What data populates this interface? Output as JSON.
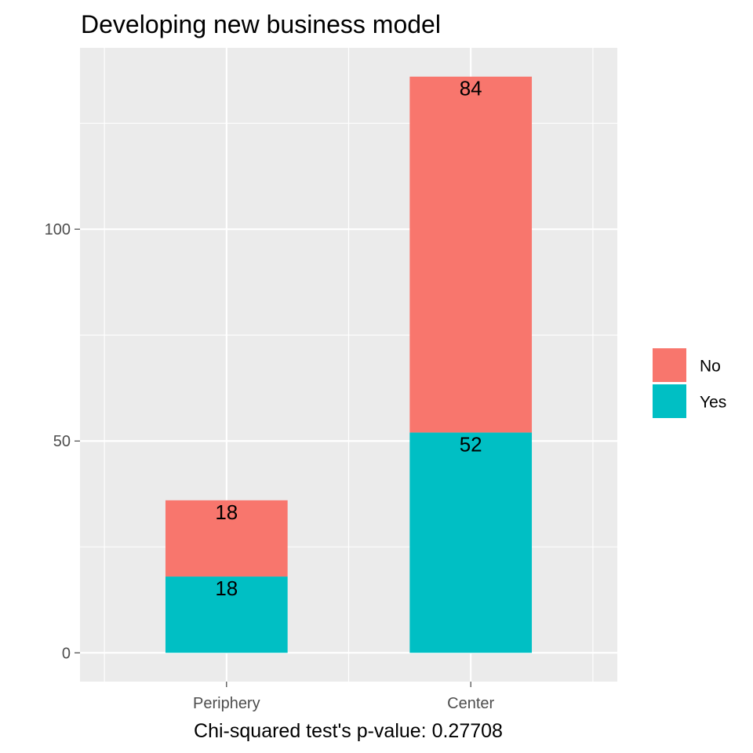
{
  "chart_data": {
    "type": "bar",
    "stacked": true,
    "title": "Developing new business model",
    "xlabel": "Chi-squared test's p-value: 0.27708",
    "ylabel": "",
    "categories": [
      "Periphery",
      "Center"
    ],
    "series": [
      {
        "name": "Yes",
        "values": [
          18,
          52
        ],
        "color": "#00BFC4"
      },
      {
        "name": "No",
        "values": [
          18,
          84
        ],
        "color": "#F8766D"
      }
    ],
    "legend_order": [
      "No",
      "Yes"
    ],
    "data_labels": true,
    "yticks": [
      0,
      50,
      100
    ],
    "ylim": [
      -6.8,
      142.8
    ],
    "grid": true,
    "legend_position": "right",
    "panel_background": "#EBEBEB",
    "grid_color": "#FFFFFF"
  }
}
